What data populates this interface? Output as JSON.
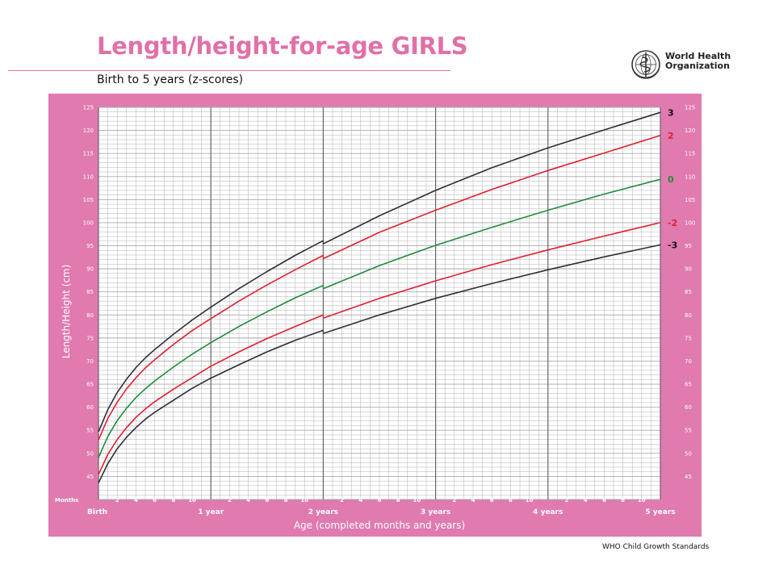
{
  "header": {
    "title": "Length/height-for-age GIRLS",
    "subtitle": "Birth to 5 years (z-scores)"
  },
  "logo": {
    "line1": "World Health",
    "line2": "Organization",
    "icon": "who-emblem-icon"
  },
  "footer": {
    "text": "WHO Child Growth Standards"
  },
  "colors": {
    "brand_pink": "#e070a8",
    "chart_background": "#e07aaf",
    "grid_line": "#a9a9a9",
    "line_dark": "#2e2e3a",
    "line_red": "#e02030",
    "line_green": "#1f8c3a"
  },
  "chart_data": {
    "type": "line",
    "title": "Length/height-for-age GIRLS",
    "subtitle": "Birth to 5 years (z-scores)",
    "xlabel": "Age (completed months and years)",
    "ylabel": "Length/Height (cm)",
    "xlim": [
      0,
      60
    ],
    "ylim": [
      40,
      125
    ],
    "y_ticks": [
      45,
      50,
      55,
      60,
      65,
      70,
      75,
      80,
      85,
      90,
      95,
      100,
      105,
      110,
      115,
      120,
      125
    ],
    "months_label": "Months",
    "month_ticks": [
      "2",
      "4",
      "6",
      "8",
      "10"
    ],
    "year_ticks": [
      {
        "month": 0,
        "label": "Birth"
      },
      {
        "month": 12,
        "label": "1 year"
      },
      {
        "month": 24,
        "label": "2 years"
      },
      {
        "month": 36,
        "label": "3 years"
      },
      {
        "month": 48,
        "label": "4 years"
      },
      {
        "month": 60,
        "label": "5 years"
      }
    ],
    "grid": true,
    "legend": "right-end labels",
    "x_months": [
      0,
      1,
      2,
      3,
      4,
      5,
      6,
      8,
      10,
      12,
      15,
      18,
      21,
      24,
      24,
      30,
      36,
      42,
      48,
      54,
      60
    ],
    "series": [
      {
        "name": "3",
        "color": "#2e2e3a",
        "values": [
          54.7,
          59.5,
          63.2,
          66.1,
          68.6,
          70.7,
          72.5,
          75.8,
          78.9,
          81.7,
          85.7,
          89.4,
          92.9,
          96.1,
          95.4,
          101.5,
          107.0,
          111.9,
          116.2,
          120.1,
          123.9
        ]
      },
      {
        "name": "2",
        "color": "#e02030",
        "values": [
          52.9,
          57.6,
          61.1,
          64.0,
          66.4,
          68.5,
          70.3,
          73.6,
          76.6,
          79.2,
          83.0,
          86.5,
          89.8,
          92.9,
          92.2,
          97.9,
          102.7,
          107.2,
          111.3,
          115.1,
          118.9
        ]
      },
      {
        "name": "0",
        "color": "#1f8c3a",
        "values": [
          49.1,
          53.7,
          57.1,
          59.8,
          62.1,
          64.0,
          65.7,
          68.7,
          71.5,
          74.0,
          77.5,
          80.7,
          83.7,
          86.4,
          85.7,
          90.7,
          95.1,
          99.0,
          102.7,
          106.2,
          109.4
        ]
      },
      {
        "name": "-2",
        "color": "#e02030",
        "values": [
          45.4,
          49.8,
          53.0,
          55.6,
          57.8,
          59.6,
          61.2,
          63.9,
          66.4,
          68.9,
          72.0,
          74.9,
          77.5,
          80.0,
          79.3,
          83.6,
          87.4,
          90.9,
          94.1,
          97.1,
          100.0
        ]
      },
      {
        "name": "-3",
        "color": "#2e2e3a",
        "values": [
          43.6,
          47.8,
          51.0,
          53.5,
          55.6,
          57.4,
          58.9,
          61.5,
          64.1,
          66.3,
          69.2,
          72.0,
          74.5,
          76.7,
          76.0,
          80.0,
          83.6,
          86.8,
          89.8,
          92.6,
          95.2
        ]
      }
    ]
  }
}
